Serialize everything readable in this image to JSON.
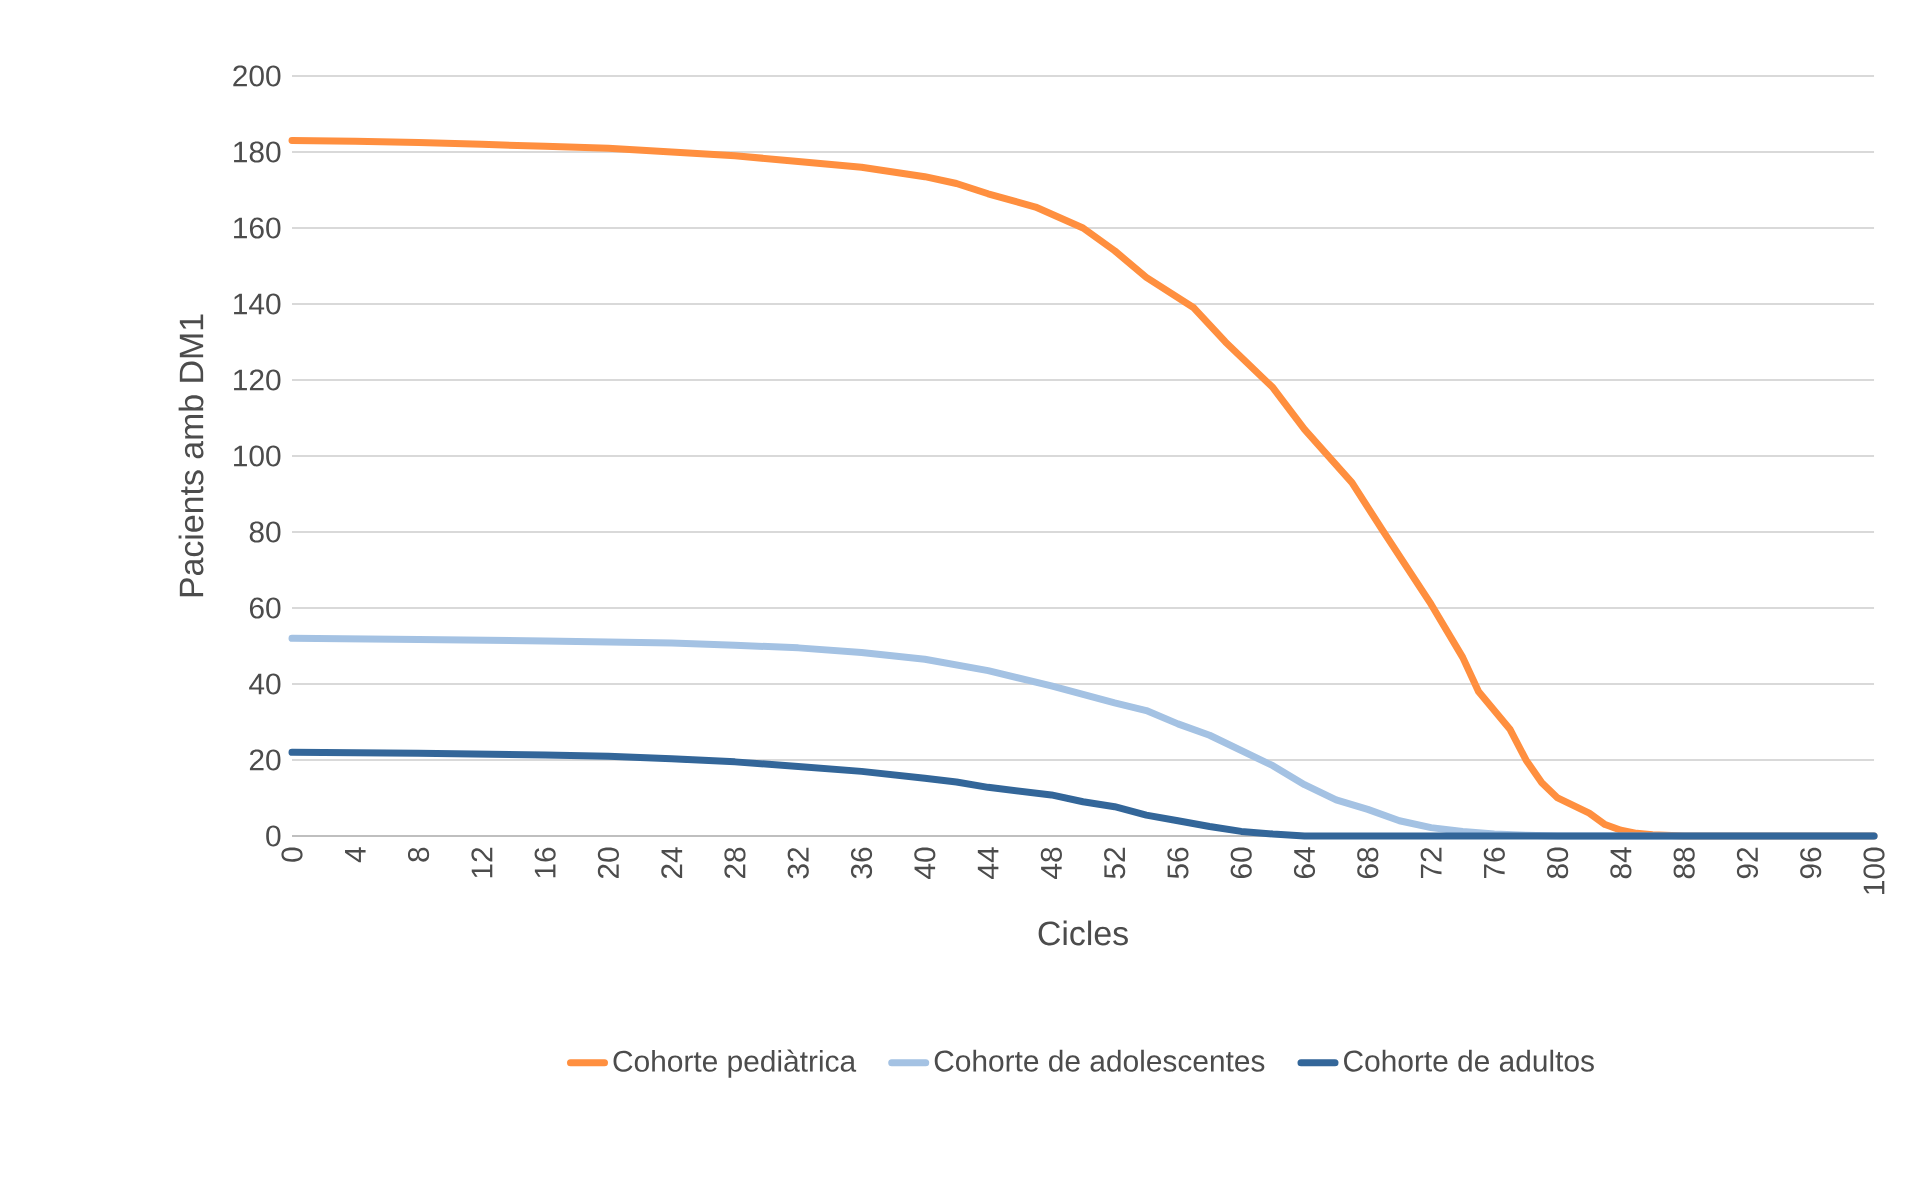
{
  "chart_data": {
    "type": "line",
    "xlabel": "Cicles",
    "ylabel": "Pacients amb DM1",
    "xlim": [
      0,
      100
    ],
    "xticks": [
      0,
      4,
      8,
      12,
      16,
      20,
      24,
      28,
      32,
      36,
      40,
      44,
      48,
      52,
      56,
      60,
      64,
      68,
      72,
      76,
      80,
      84,
      88,
      92,
      96,
      100
    ],
    "ylim": [
      0,
      200
    ],
    "yticks": [
      0,
      20,
      40,
      60,
      80,
      100,
      120,
      140,
      160,
      180,
      200
    ],
    "grid": "y",
    "legend": "bottom",
    "series": [
      {
        "name": "Cohorte pediàtrica",
        "color": "#ff8f3f",
        "x": [
          0,
          4,
          8,
          12,
          16,
          20,
          24,
          28,
          32,
          36,
          40,
          42,
          44,
          47,
          50,
          52,
          54,
          57,
          59,
          62,
          64,
          67,
          69,
          72,
          74,
          75,
          77,
          78,
          79,
          80,
          82,
          83,
          84,
          85,
          86,
          88,
          100
        ],
        "values": [
          183,
          182.8,
          182.5,
          182,
          181.5,
          181,
          180,
          179,
          177.5,
          176,
          173.5,
          171.7,
          169,
          165.5,
          160,
          154,
          147,
          139,
          130,
          118,
          107,
          93,
          80,
          61,
          47,
          38,
          28,
          20,
          14,
          10,
          6,
          3,
          1.5,
          0.7,
          0.3,
          0,
          0
        ]
      },
      {
        "name": "Cohorte de adolescentes",
        "color": "#a4c2e3",
        "x": [
          0,
          8,
          16,
          24,
          28,
          32,
          36,
          40,
          44,
          48,
          52,
          54,
          56,
          58,
          60,
          62,
          64,
          66,
          68,
          70,
          72,
          74,
          76,
          78,
          80,
          100
        ],
        "values": [
          52,
          51.7,
          51.3,
          50.8,
          50.2,
          49.5,
          48.3,
          46.5,
          43.5,
          39.5,
          35,
          33,
          29.5,
          26.5,
          22.5,
          18.5,
          13.5,
          9.5,
          7,
          4,
          2.2,
          1.2,
          0.5,
          0.2,
          0,
          0
        ]
      },
      {
        "name": "Cohorte de adultos",
        "color": "#336699",
        "x": [
          0,
          8,
          16,
          20,
          24,
          28,
          32,
          36,
          40,
          42,
          44,
          48,
          50,
          52,
          54,
          56,
          58,
          60,
          62,
          64,
          100
        ],
        "values": [
          22,
          21.8,
          21.3,
          21,
          20.3,
          19.5,
          18.3,
          17,
          15.2,
          14.2,
          12.8,
          10.8,
          9,
          7.7,
          5.5,
          4,
          2.5,
          1.2,
          0.5,
          0,
          0
        ]
      }
    ]
  }
}
